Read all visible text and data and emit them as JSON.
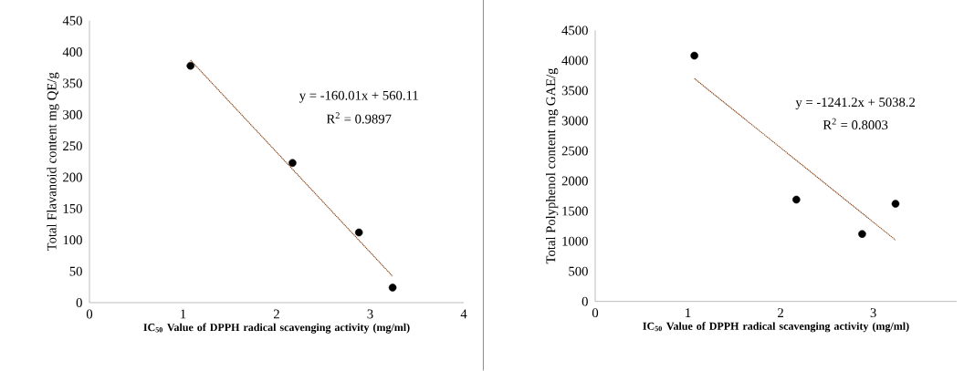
{
  "chart_data": [
    {
      "type": "scatter",
      "xlabel": "IC$_{50}$ Value of DPPH radical scavenging activity (mg/ml)",
      "ylabel": "Total Flavanoid content mg QE/g",
      "xlim": [
        0,
        4
      ],
      "ylim": [
        0,
        450
      ],
      "xticks": [
        0,
        1,
        2,
        3,
        4
      ],
      "yticks": [
        0,
        50,
        100,
        150,
        200,
        250,
        300,
        350,
        400,
        450
      ],
      "grid": false,
      "annotations": [
        "y = -160.01x + 560.11",
        "R$^{2}$ = 0.9897"
      ],
      "series": [
        {
          "color": "#000000",
          "marker": "circle",
          "x": [
            1.08,
            2.17,
            2.88,
            3.24
          ],
          "values": [
            378,
            223,
            112,
            24
          ]
        },
        {
          "type": "line",
          "color": "#843c0c",
          "line_style": "dotted",
          "marker": "none",
          "x": [
            1.08,
            3.24
          ],
          "values": [
            387,
            42
          ]
        }
      ]
    },
    {
      "type": "scatter",
      "xlabel": "IC$_{50}$ Value of DPPH radical scavenging activity (mg/ml)",
      "ylabel": "Total Polyphenol content mg GAE/g",
      "xlim": [
        0,
        3.9
      ],
      "ylim": [
        0,
        4500
      ],
      "xticks": [
        0,
        1,
        2,
        3
      ],
      "yticks": [
        0,
        500,
        1000,
        1500,
        2000,
        2500,
        3000,
        3500,
        4000,
        4500
      ],
      "grid": false,
      "annotations": [
        "y = -1241.2x + 5038.2",
        "R$^{2}$ = 0.8003"
      ],
      "series": [
        {
          "color": "#000000",
          "marker": "circle",
          "x": [
            1.07,
            2.17,
            2.88,
            3.24
          ],
          "values": [
            4080,
            1690,
            1120,
            1620
          ]
        },
        {
          "type": "line",
          "color": "#843c0c",
          "line_style": "dotted",
          "marker": "none",
          "x": [
            1.07,
            3.24
          ],
          "values": [
            3700,
            1020
          ]
        }
      ]
    }
  ]
}
